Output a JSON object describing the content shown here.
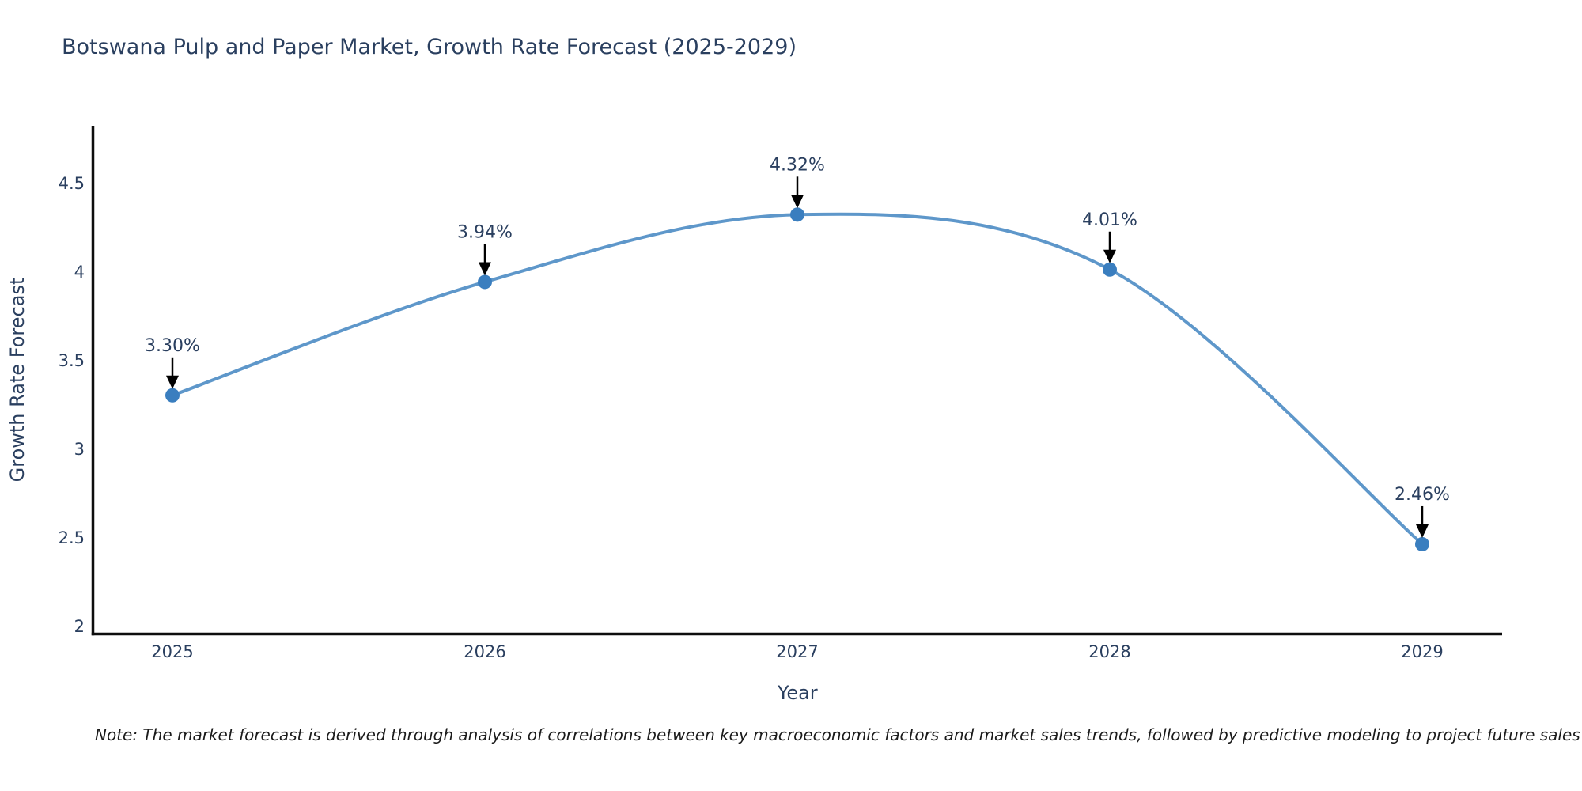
{
  "title": "Botswana Pulp and Paper Market, Growth Rate Forecast (2025-2029)",
  "note": "Note: The market forecast is derived through analysis of correlations between key macroeconomic factors and market sales trends, followed by predictive modeling to project future sales",
  "chart_data": {
    "type": "line",
    "line_shape": "spline",
    "x": [
      2025,
      2026,
      2027,
      2028,
      2029
    ],
    "values": [
      3.3,
      3.94,
      4.32,
      4.01,
      2.46
    ],
    "point_labels": [
      "3.30%",
      "3.94%",
      "4.32%",
      "4.01%",
      "2.46%"
    ],
    "xlabel": "Year",
    "ylabel": "Growth Rate Forecast",
    "yticks": [
      "2",
      "2.5",
      "3",
      "3.5",
      "4",
      "4.5"
    ],
    "ytick_values": [
      2,
      2.5,
      3,
      3.5,
      4,
      4.5
    ],
    "ylim": [
      1.96,
      4.82
    ],
    "grid": false,
    "legend": "none",
    "annotations": "black arrows pointing down at each marker with percent labels above",
    "colors": {
      "line": "#4c8cc4",
      "marker": "#3a7ebf",
      "axis": "#0d0d0d",
      "text": "#2a3f5f",
      "arrow": "#000000",
      "note_text": "#1a1a1a",
      "background": "#ffffff"
    }
  }
}
